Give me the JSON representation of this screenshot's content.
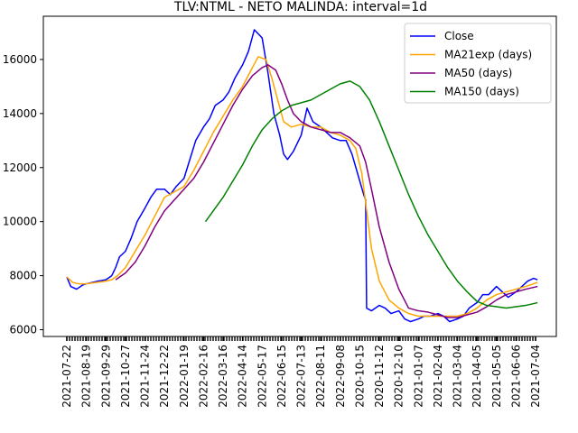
{
  "chart_data": {
    "type": "line",
    "title": "TLV:NTML - NETO MALINDA: interval=1d",
    "xlabel": "",
    "ylabel": "",
    "x_tick_labels": [
      "2021-07-22",
      "2021-08-19",
      "2021-09-29",
      "2021-10-27",
      "2021-11-24",
      "2021-12-22",
      "2022-01-19",
      "2022-02-16",
      "2022-03-16",
      "2022-04-14",
      "2022-05-17",
      "2022-06-15",
      "2022-07-13",
      "2022-08-11",
      "2022-09-08",
      "2020-10-15",
      "2020-11-12",
      "2020-12-10",
      "2021-01-07",
      "2021-02-04",
      "2021-03-04",
      "2021-04-05",
      "2021-05-05",
      "2021-06-06",
      "2021-07-04"
    ],
    "y_ticks": [
      6000,
      8000,
      10000,
      12000,
      14000,
      16000
    ],
    "y_tick_labels": [
      "6000",
      "8000",
      "10000",
      "12000",
      "14000",
      "16000"
    ],
    "ylim": [
      5750,
      17600
    ],
    "index_range": [
      0,
      24.2
    ],
    "legend_position": "upper-right",
    "grid": false,
    "series": [
      {
        "name": "Close",
        "color": "#0000ff",
        "points": [
          [
            0,
            7950
          ],
          [
            0.2,
            7600
          ],
          [
            0.5,
            7500
          ],
          [
            0.8,
            7650
          ],
          [
            1,
            7700
          ],
          [
            1.3,
            7750
          ],
          [
            1.6,
            7800
          ],
          [
            2,
            7850
          ],
          [
            2.3,
            8000
          ],
          [
            2.5,
            8300
          ],
          [
            2.7,
            8700
          ],
          [
            3,
            8900
          ],
          [
            3.3,
            9400
          ],
          [
            3.6,
            10000
          ],
          [
            4,
            10500
          ],
          [
            4.3,
            10900
          ],
          [
            4.6,
            11200
          ],
          [
            5,
            11200
          ],
          [
            5.3,
            11000
          ],
          [
            5.6,
            11300
          ],
          [
            6,
            11600
          ],
          [
            6.3,
            12300
          ],
          [
            6.6,
            13000
          ],
          [
            7,
            13500
          ],
          [
            7.3,
            13800
          ],
          [
            7.6,
            14300
          ],
          [
            8,
            14500
          ],
          [
            8.3,
            14800
          ],
          [
            8.6,
            15300
          ],
          [
            9,
            15800
          ],
          [
            9.3,
            16300
          ],
          [
            9.6,
            17100
          ],
          [
            10,
            16800
          ],
          [
            10.3,
            15500
          ],
          [
            10.6,
            14000
          ],
          [
            10.9,
            13200
          ],
          [
            11.1,
            12500
          ],
          [
            11.3,
            12300
          ],
          [
            11.6,
            12600
          ],
          [
            12,
            13200
          ],
          [
            12.3,
            14200
          ],
          [
            12.6,
            13700
          ],
          [
            13,
            13500
          ],
          [
            13.3,
            13300
          ],
          [
            13.6,
            13100
          ],
          [
            14,
            13000
          ],
          [
            14.3,
            13000
          ],
          [
            14.6,
            12500
          ],
          [
            15,
            11500
          ],
          [
            15.2,
            11000
          ],
          [
            15.3,
            10800
          ],
          [
            15.35,
            6800
          ],
          [
            15.6,
            6700
          ],
          [
            16,
            6900
          ],
          [
            16.3,
            6800
          ],
          [
            16.6,
            6600
          ],
          [
            17,
            6700
          ],
          [
            17.3,
            6400
          ],
          [
            17.6,
            6300
          ],
          [
            18,
            6400
          ],
          [
            18.3,
            6500
          ],
          [
            18.6,
            6500
          ],
          [
            19,
            6600
          ],
          [
            19.3,
            6500
          ],
          [
            19.6,
            6300
          ],
          [
            20,
            6400
          ],
          [
            20.3,
            6500
          ],
          [
            20.6,
            6800
          ],
          [
            21,
            7000
          ],
          [
            21.3,
            7300
          ],
          [
            21.6,
            7300
          ],
          [
            22,
            7600
          ],
          [
            22.3,
            7400
          ],
          [
            22.6,
            7200
          ],
          [
            23,
            7400
          ],
          [
            23.3,
            7600
          ],
          [
            23.6,
            7800
          ],
          [
            23.9,
            7900
          ],
          [
            24.1,
            7850
          ]
        ]
      },
      {
        "name": "MA21exp (days)",
        "color": "#ffa500",
        "points": [
          [
            0,
            7950
          ],
          [
            0.3,
            7750
          ],
          [
            0.6,
            7700
          ],
          [
            1,
            7700
          ],
          [
            1.5,
            7750
          ],
          [
            2,
            7800
          ],
          [
            2.3,
            7850
          ],
          [
            2.6,
            8000
          ],
          [
            3,
            8300
          ],
          [
            3.5,
            8900
          ],
          [
            4,
            9500
          ],
          [
            4.5,
            10200
          ],
          [
            5,
            10900
          ],
          [
            5.5,
            11100
          ],
          [
            6,
            11300
          ],
          [
            6.5,
            11900
          ],
          [
            7,
            12600
          ],
          [
            7.5,
            13300
          ],
          [
            8,
            13900
          ],
          [
            8.5,
            14500
          ],
          [
            9,
            15000
          ],
          [
            9.5,
            15700
          ],
          [
            9.8,
            16100
          ],
          [
            10.2,
            16000
          ],
          [
            10.5,
            15300
          ],
          [
            10.8,
            14500
          ],
          [
            11.1,
            13700
          ],
          [
            11.5,
            13500
          ],
          [
            12,
            13600
          ],
          [
            12.5,
            13500
          ],
          [
            13,
            13500
          ],
          [
            13.5,
            13300
          ],
          [
            14,
            13200
          ],
          [
            14.5,
            13000
          ],
          [
            14.8,
            12700
          ],
          [
            15.1,
            11800
          ],
          [
            15.3,
            10700
          ],
          [
            15.6,
            9000
          ],
          [
            16,
            7800
          ],
          [
            16.5,
            7100
          ],
          [
            17,
            6800
          ],
          [
            17.5,
            6600
          ],
          [
            18,
            6500
          ],
          [
            18.5,
            6500
          ],
          [
            19,
            6500
          ],
          [
            19.5,
            6500
          ],
          [
            20,
            6500
          ],
          [
            20.5,
            6600
          ],
          [
            21,
            6800
          ],
          [
            21.5,
            7100
          ],
          [
            22,
            7300
          ],
          [
            22.5,
            7400
          ],
          [
            23,
            7500
          ],
          [
            23.5,
            7600
          ],
          [
            24.1,
            7750
          ]
        ]
      },
      {
        "name": "MA50 (days)",
        "color": "#800080",
        "points": [
          [
            2.5,
            7850
          ],
          [
            3,
            8100
          ],
          [
            3.5,
            8500
          ],
          [
            4,
            9100
          ],
          [
            4.5,
            9800
          ],
          [
            5,
            10400
          ],
          [
            5.5,
            10800
          ],
          [
            6,
            11200
          ],
          [
            6.5,
            11600
          ],
          [
            7,
            12200
          ],
          [
            7.5,
            12900
          ],
          [
            8,
            13600
          ],
          [
            8.5,
            14300
          ],
          [
            9,
            14900
          ],
          [
            9.5,
            15400
          ],
          [
            10,
            15700
          ],
          [
            10.3,
            15800
          ],
          [
            10.7,
            15600
          ],
          [
            11,
            15100
          ],
          [
            11.3,
            14500
          ],
          [
            11.6,
            14000
          ],
          [
            12,
            13700
          ],
          [
            12.5,
            13500
          ],
          [
            13,
            13400
          ],
          [
            13.5,
            13300
          ],
          [
            14,
            13300
          ],
          [
            14.5,
            13100
          ],
          [
            15,
            12800
          ],
          [
            15.3,
            12200
          ],
          [
            15.6,
            11200
          ],
          [
            16,
            9800
          ],
          [
            16.5,
            8500
          ],
          [
            17,
            7500
          ],
          [
            17.5,
            6800
          ],
          [
            18,
            6700
          ],
          [
            18.5,
            6650
          ],
          [
            19,
            6550
          ],
          [
            19.5,
            6450
          ],
          [
            20,
            6450
          ],
          [
            20.5,
            6550
          ],
          [
            21,
            6650
          ],
          [
            21.5,
            6850
          ],
          [
            22,
            7100
          ],
          [
            22.5,
            7300
          ],
          [
            23,
            7400
          ],
          [
            23.5,
            7500
          ],
          [
            24.1,
            7600
          ]
        ]
      },
      {
        "name": "MA150 (days)",
        "color": "#008000",
        "points": [
          [
            7.1,
            10000
          ],
          [
            7.5,
            10400
          ],
          [
            8,
            10900
          ],
          [
            8.5,
            11500
          ],
          [
            9,
            12100
          ],
          [
            9.5,
            12800
          ],
          [
            10,
            13400
          ],
          [
            10.5,
            13800
          ],
          [
            11,
            14100
          ],
          [
            11.5,
            14300
          ],
          [
            12,
            14400
          ],
          [
            12.5,
            14500
          ],
          [
            13,
            14700
          ],
          [
            13.5,
            14900
          ],
          [
            14,
            15100
          ],
          [
            14.5,
            15200
          ],
          [
            15,
            15000
          ],
          [
            15.5,
            14500
          ],
          [
            16,
            13700
          ],
          [
            16.5,
            12800
          ],
          [
            17,
            11900
          ],
          [
            17.5,
            11000
          ],
          [
            18,
            10200
          ],
          [
            18.5,
            9500
          ],
          [
            19,
            8900
          ],
          [
            19.5,
            8300
          ],
          [
            20,
            7800
          ],
          [
            20.5,
            7400
          ],
          [
            21,
            7050
          ],
          [
            21.5,
            6900
          ],
          [
            22,
            6850
          ],
          [
            22.5,
            6800
          ],
          [
            23,
            6850
          ],
          [
            23.5,
            6900
          ],
          [
            24.1,
            7000
          ]
        ]
      }
    ]
  }
}
